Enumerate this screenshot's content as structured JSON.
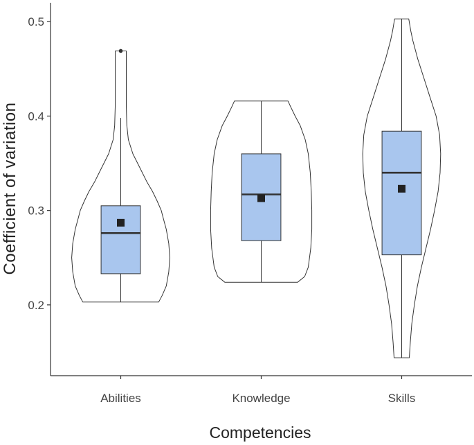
{
  "chart_data": {
    "type": "violin",
    "title": "",
    "xlabel": "Competencies",
    "ylabel": "Coefficient of variation",
    "categories": [
      "Abilities",
      "Knowledge",
      "Skills"
    ],
    "ylim": [
      0.125,
      0.52
    ],
    "yticks": [
      0.2,
      0.3,
      0.4,
      0.5
    ],
    "ytick_labels": [
      "0.2",
      "0.3",
      "0.4",
      "0.5"
    ],
    "grid": false,
    "legend": "none",
    "colors": {
      "box_fill": "#a9c6ee",
      "line": "#333333",
      "mean_marker": "#222222"
    },
    "box_stats": [
      {
        "category": "Abilities",
        "min": 0.203,
        "q1": 0.233,
        "median": 0.276,
        "q3": 0.305,
        "max": 0.398,
        "mean": 0.287,
        "outliers": [
          0.469
        ]
      },
      {
        "category": "Knowledge",
        "min": 0.224,
        "q1": 0.268,
        "median": 0.317,
        "q3": 0.36,
        "max": 0.416,
        "mean": 0.313,
        "outliers": []
      },
      {
        "category": "Skills",
        "min": 0.144,
        "q1": 0.253,
        "median": 0.34,
        "q3": 0.384,
        "max": 0.503,
        "mean": 0.323,
        "outliers": []
      }
    ],
    "violin_profiles": [
      {
        "category": "Abilities",
        "y": [
          0.203,
          0.21,
          0.22,
          0.235,
          0.25,
          0.265,
          0.28,
          0.29,
          0.3,
          0.31,
          0.32,
          0.33,
          0.345,
          0.36,
          0.375,
          0.39,
          0.41,
          0.43,
          0.45,
          0.46,
          0.469
        ],
        "width": [
          0.75,
          0.82,
          0.9,
          0.95,
          0.97,
          0.95,
          0.9,
          0.85,
          0.8,
          0.72,
          0.63,
          0.52,
          0.38,
          0.24,
          0.15,
          0.12,
          0.11,
          0.11,
          0.11,
          0.11,
          0.11
        ]
      },
      {
        "category": "Knowledge",
        "y": [
          0.224,
          0.23,
          0.24,
          0.26,
          0.28,
          0.3,
          0.32,
          0.34,
          0.36,
          0.375,
          0.39,
          0.4,
          0.41,
          0.416
        ],
        "width": [
          0.72,
          0.86,
          0.93,
          0.98,
          1.0,
          1.0,
          0.99,
          0.97,
          0.93,
          0.87,
          0.77,
          0.67,
          0.58,
          0.53
        ]
      },
      {
        "category": "Skills",
        "y": [
          0.144,
          0.16,
          0.18,
          0.2,
          0.22,
          0.24,
          0.26,
          0.28,
          0.3,
          0.32,
          0.34,
          0.36,
          0.38,
          0.4,
          0.42,
          0.44,
          0.46,
          0.48,
          0.49,
          0.503
        ],
        "width": [
          0.15,
          0.17,
          0.2,
          0.25,
          0.31,
          0.39,
          0.48,
          0.57,
          0.65,
          0.72,
          0.76,
          0.77,
          0.75,
          0.68,
          0.56,
          0.44,
          0.32,
          0.22,
          0.18,
          0.14
        ]
      }
    ]
  }
}
